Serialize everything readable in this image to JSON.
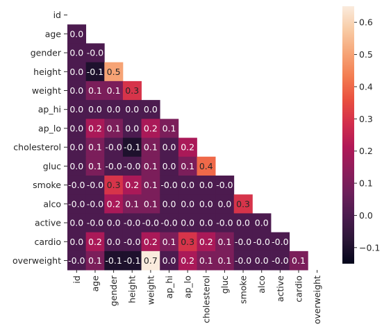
{
  "chart_data": {
    "type": "heatmap",
    "mask": "upper-triangle",
    "labels": [
      "id",
      "age",
      "gender",
      "height",
      "weight",
      "ap_hi",
      "ap_lo",
      "cholesterol",
      "gluc",
      "smoke",
      "alco",
      "active",
      "cardio",
      "overweight"
    ],
    "rows": [
      {
        "label": "id",
        "values": []
      },
      {
        "label": "age",
        "values": [
          0.0
        ]
      },
      {
        "label": "gender",
        "values": [
          0.0,
          -0.0
        ]
      },
      {
        "label": "height",
        "values": [
          0.0,
          -0.1,
          0.5
        ]
      },
      {
        "label": "weight",
        "values": [
          0.0,
          0.1,
          0.1,
          0.3
        ]
      },
      {
        "label": "ap_hi",
        "values": [
          0.0,
          0.0,
          0.0,
          0.0,
          0.0
        ]
      },
      {
        "label": "ap_lo",
        "values": [
          0.0,
          0.2,
          0.1,
          0.0,
          0.2,
          0.1
        ]
      },
      {
        "label": "cholesterol",
        "values": [
          0.0,
          0.1,
          -0.0,
          -0.1,
          0.1,
          0.0,
          0.2
        ]
      },
      {
        "label": "gluc",
        "values": [
          0.0,
          0.1,
          -0.0,
          -0.0,
          0.1,
          0.0,
          0.1,
          0.4
        ]
      },
      {
        "label": "smoke",
        "values": [
          -0.0,
          -0.0,
          0.3,
          0.2,
          0.1,
          -0.0,
          0.0,
          0.0,
          -0.0
        ]
      },
      {
        "label": "alco",
        "values": [
          -0.0,
          -0.0,
          0.2,
          0.1,
          0.1,
          0.0,
          0.0,
          0.0,
          0.0,
          0.3
        ]
      },
      {
        "label": "active",
        "values": [
          0.0,
          -0.0,
          0.0,
          -0.0,
          -0.0,
          -0.0,
          0.0,
          0.0,
          -0.0,
          0.0,
          0.0
        ]
      },
      {
        "label": "cardio",
        "values": [
          0.0,
          0.2,
          0.0,
          -0.0,
          0.2,
          0.1,
          0.3,
          0.2,
          0.1,
          -0.0,
          -0.0,
          -0.0
        ]
      },
      {
        "label": "overweight",
        "values": [
          -0.0,
          0.1,
          -0.1,
          -0.1,
          0.7,
          0.0,
          0.2,
          0.1,
          0.1,
          -0.0,
          0.0,
          -0.0,
          0.1
        ]
      }
    ],
    "colorbar": {
      "vmin": -0.15,
      "vmax": 0.65,
      "ticks": [
        -0.1,
        0.0,
        0.1,
        0.2,
        0.3,
        0.4,
        0.5,
        0.6
      ],
      "tick_labels": [
        "−0.1",
        "0.0",
        "0.1",
        "0.2",
        "0.3",
        "0.4",
        "0.5",
        "0.6"
      ]
    },
    "colormap": [
      "#03051a",
      "#2a1636",
      "#4a1b4e",
      "#6c1f5a",
      "#8e1d5b",
      "#b11857",
      "#d22e4c",
      "#e9503f",
      "#f37d51",
      "#f6a577",
      "#f8cba5",
      "#faebdd"
    ]
  }
}
